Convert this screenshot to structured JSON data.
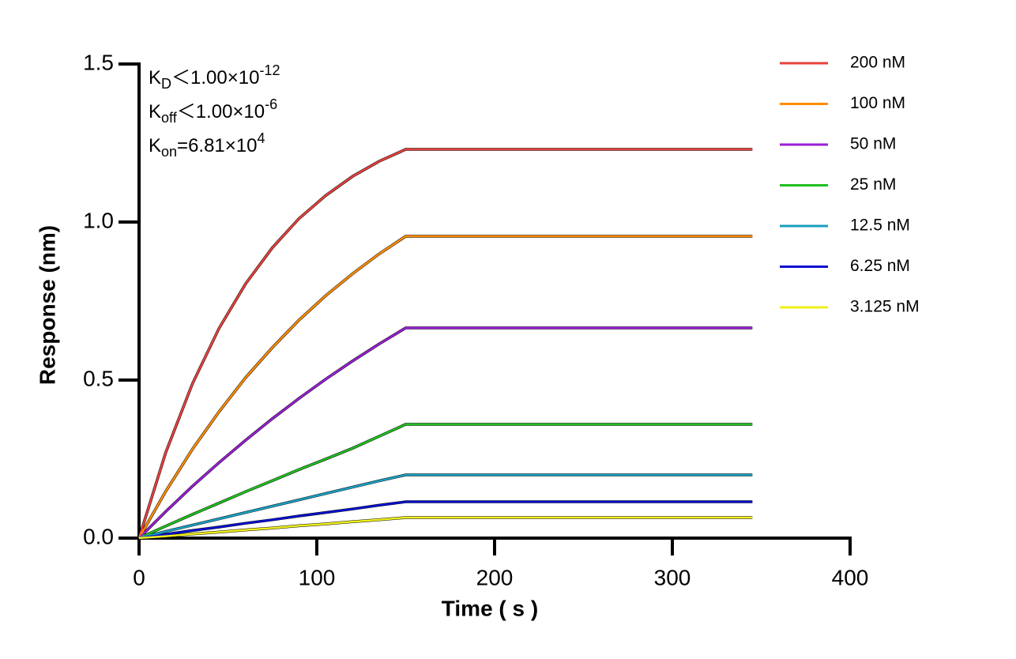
{
  "chart_data": {
    "type": "line",
    "xlabel": "Time ( s )",
    "ylabel": "Response (nm)",
    "annotations": [
      [
        "K",
        "D",
        "＜1.00×10",
        "-12"
      ],
      [
        "K",
        "off",
        "＜1.00×10",
        "-6"
      ],
      [
        "K",
        "on",
        "=6.81×10",
        "4"
      ]
    ],
    "x": [
      0,
      15,
      30,
      45,
      60,
      75,
      90,
      105,
      120,
      135,
      150,
      200,
      250,
      300,
      345
    ],
    "series": [
      {
        "name": "200 nM",
        "color": "#e8413c",
        "values": [
          0,
          0.271,
          0.488,
          0.664,
          0.805,
          0.919,
          1.011,
          1.084,
          1.144,
          1.192,
          1.23,
          1.23,
          1.23,
          1.23,
          1.23
        ]
      },
      {
        "name": "100 nM",
        "color": "#ff8c00",
        "values": [
          0,
          0.148,
          0.281,
          0.4,
          0.508,
          0.603,
          0.69,
          0.767,
          0.836,
          0.899,
          0.955,
          0.955,
          0.955,
          0.955,
          0.955
        ]
      },
      {
        "name": "50 nM",
        "color": "#9b1fd6",
        "values": [
          0,
          0.084,
          0.164,
          0.239,
          0.31,
          0.378,
          0.442,
          0.503,
          0.56,
          0.614,
          0.665,
          0.665,
          0.665,
          0.665,
          0.665
        ]
      },
      {
        "name": "25 nM",
        "color": "#1fbf1f",
        "values": [
          0,
          0.038,
          0.075,
          0.111,
          0.147,
          0.182,
          0.217,
          0.25,
          0.284,
          0.322,
          0.36,
          0.36,
          0.36,
          0.36,
          0.36
        ]
      },
      {
        "name": "12.5 nM",
        "color": "#1a9fbf",
        "values": [
          0,
          0.021,
          0.041,
          0.061,
          0.081,
          0.101,
          0.121,
          0.141,
          0.161,
          0.181,
          0.2,
          0.2,
          0.2,
          0.2,
          0.2
        ]
      },
      {
        "name": "6.25 nM",
        "color": "#0a10d0",
        "values": [
          0,
          0.012,
          0.024,
          0.035,
          0.047,
          0.058,
          0.07,
          0.081,
          0.092,
          0.104,
          0.115,
          0.115,
          0.115,
          0.115,
          0.115
        ]
      },
      {
        "name": "3.125 nM",
        "color": "#f0f01a",
        "values": [
          0,
          0.006,
          0.013,
          0.019,
          0.026,
          0.032,
          0.039,
          0.045,
          0.052,
          0.058,
          0.065,
          0.065,
          0.065,
          0.065,
          0.065
        ]
      }
    ],
    "xlim": [
      0,
      400
    ],
    "xticks": [
      0,
      100,
      200,
      300,
      400
    ],
    "ylim": [
      0,
      1.5
    ],
    "yticks": [
      {
        "value": 0,
        "label": "0.0"
      },
      0.5,
      {
        "value": 1,
        "label": "1.0"
      },
      1.5
    ],
    "fit_color": "#000000"
  }
}
